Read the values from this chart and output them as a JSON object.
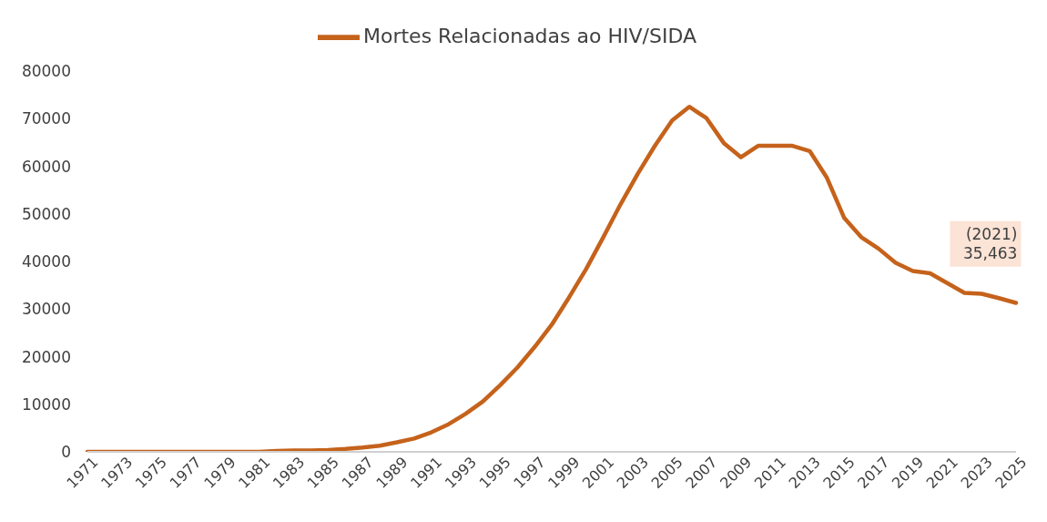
{
  "chart_data": {
    "type": "line",
    "categories": [
      "1971",
      null,
      "1973",
      null,
      "1975",
      null,
      "1977",
      null,
      "1979",
      null,
      "1981",
      null,
      "1983",
      null,
      "1985",
      null,
      "1987",
      null,
      "1989",
      null,
      "1991",
      null,
      "1993",
      null,
      "1995",
      null,
      "1997",
      null,
      "1999",
      null,
      "2001",
      null,
      "2003",
      null,
      "2005",
      null,
      "2007",
      null,
      "2009",
      null,
      "2011",
      null,
      "2013",
      null,
      "2015",
      null,
      "2017",
      null,
      "2019",
      null,
      "2021",
      null,
      "2023",
      null,
      "2025"
    ],
    "series": [
      {
        "name": "Mortes Relacionadas ao HIV/SIDA",
        "color": "#c5621b",
        "values": [
          0,
          0,
          0,
          0,
          0,
          0,
          0,
          0,
          0,
          0,
          0,
          200,
          300,
          300,
          400,
          600,
          900,
          1300,
          2000,
          2800,
          4100,
          5800,
          8000,
          10600,
          14000,
          17700,
          22000,
          26700,
          32400,
          38400,
          45100,
          52000,
          58400,
          64300,
          69600,
          72500,
          70100,
          64900,
          61900,
          64300,
          64300,
          64300,
          63200,
          57600,
          49200,
          45100,
          42700,
          39700,
          38000,
          37500,
          35463,
          33400,
          33200,
          32300,
          31300
        ]
      }
    ],
    "ylim": [
      0,
      80000
    ],
    "yticks": [
      0,
      10000,
      20000,
      30000,
      40000,
      50000,
      60000,
      70000,
      80000
    ],
    "grid": false,
    "legend": "top",
    "marker": "none",
    "line_style": "solid",
    "annotations": [
      {
        "text": "(2021)\n35,463",
        "x": "2021",
        "y": 35463
      }
    ]
  }
}
